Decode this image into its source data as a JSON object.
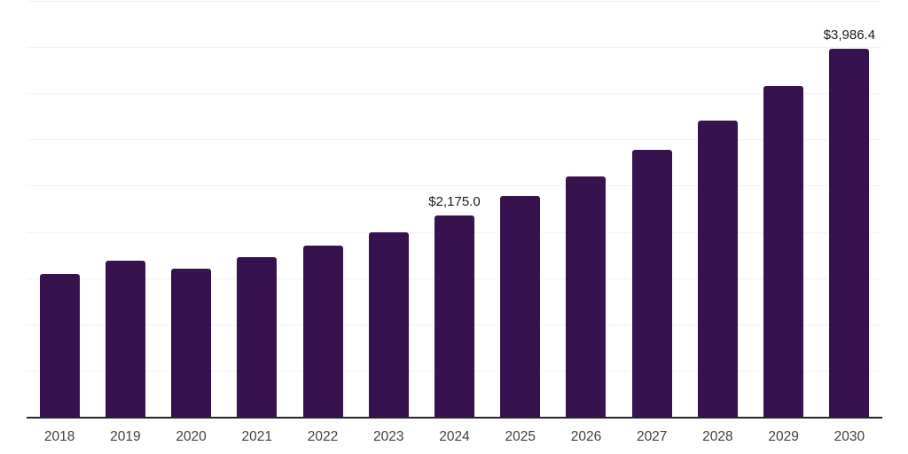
{
  "chart_data": {
    "type": "bar",
    "title": "",
    "xlabel": "",
    "ylabel": "",
    "categories": [
      "2018",
      "2019",
      "2020",
      "2021",
      "2022",
      "2023",
      "2024",
      "2025",
      "2026",
      "2027",
      "2028",
      "2029",
      "2030"
    ],
    "values": [
      1540,
      1690,
      1600,
      1730,
      1855,
      2000,
      2175.0,
      2385,
      2605,
      2885,
      3205,
      3575,
      3986.4
    ],
    "data_labels": [
      null,
      null,
      null,
      null,
      null,
      null,
      "$2,175.0",
      null,
      null,
      null,
      null,
      null,
      "$3,986.4"
    ],
    "ylim": [
      0,
      4500
    ],
    "gridline_step": 500,
    "grid": "horizontal",
    "legend": "none",
    "colors": {
      "bar": "#38124E",
      "axis_line": "#262626",
      "gridline": "#F2F2F2",
      "data_label": "#1A1A1A",
      "tick_label": "#404040",
      "background": "#FFFFFF"
    }
  }
}
